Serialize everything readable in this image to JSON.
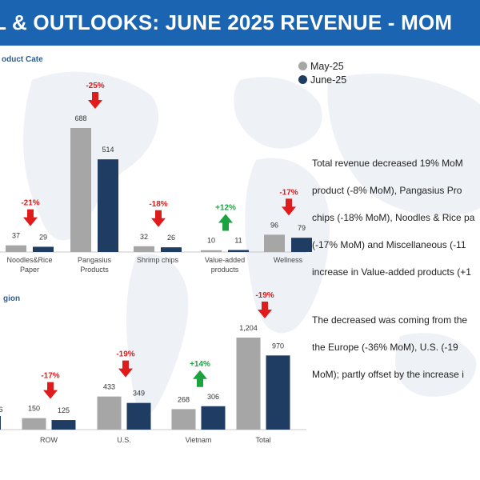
{
  "header": {
    "title": "L & OUTLOOKS: JUNE 2025 REVENUE - MOM"
  },
  "legend": [
    {
      "label": "May-25",
      "color": "#a6a6a6"
    },
    {
      "label": "June-25",
      "color": "#1f3c63"
    }
  ],
  "colors": {
    "up": "#1aa33f",
    "down": "#e01b1b",
    "header": "#1b64b2",
    "map": "#eef1f5"
  },
  "commentary": {
    "paragraph1": [
      "Total revenue decreased 19% MoM",
      "product (-8% MoM), Pangasius Pro",
      "chips (-18% MoM), Noodles & Rice pa",
      "(-17% MoM) and Miscellaneous (-11",
      "increase in Value-added products (+1"
    ],
    "paragraph2": [
      "The decreased was coming from the",
      "the Europe (-36% MoM), U.S. (-19",
      "MoM); partly offset by the increase i"
    ]
  },
  "chart_data": [
    {
      "type": "bar",
      "title": "oduct Cate",
      "categories": [
        "Noodles&Rice Paper",
        "Pangasius Products",
        "Shrimp chips",
        "Value-added products",
        "Wellness"
      ],
      "category_lines": [
        [
          "Noodles&Rice",
          "Paper"
        ],
        [
          "Pangasius",
          "Products"
        ],
        [
          "Shrimp chips"
        ],
        [
          "Value-added",
          "products"
        ],
        [
          "Wellness"
        ]
      ],
      "series": [
        {
          "name": "May-25",
          "values": [
            37,
            688,
            32,
            10,
            96
          ]
        },
        {
          "name": "June-25",
          "values": [
            29,
            514,
            26,
            11,
            79
          ]
        }
      ],
      "change_labels": [
        "-21%",
        "-25%",
        "-18%",
        "+12%",
        "-17%"
      ],
      "directions": [
        "down",
        "down",
        "down",
        "up",
        "down"
      ],
      "partial_left": {
        "values": [
          null,
          null
        ]
      }
    },
    {
      "type": "bar",
      "title": "gion",
      "categories": [
        "ROW",
        "U.S.",
        "Vietnam",
        "Total"
      ],
      "category_lines": [
        [
          "ROW"
        ],
        [
          "U.S."
        ],
        [
          "Vietnam"
        ],
        [
          "Total"
        ]
      ],
      "series": [
        {
          "name": "May-25",
          "values": [
            150,
            433,
            268,
            1204
          ]
        },
        {
          "name": "June-25",
          "values": [
            125,
            349,
            306,
            970
          ]
        }
      ],
      "value_labels": [
        [
          "150",
          "125"
        ],
        [
          "433",
          "349"
        ],
        [
          "268",
          "306"
        ],
        [
          "1,204",
          "970"
        ]
      ],
      "change_labels": [
        "-17%",
        "-19%",
        "+14%",
        "-19%"
      ],
      "directions": [
        "down",
        "down",
        "up",
        "down"
      ],
      "partial_left": {
        "value_label": "6"
      }
    }
  ]
}
